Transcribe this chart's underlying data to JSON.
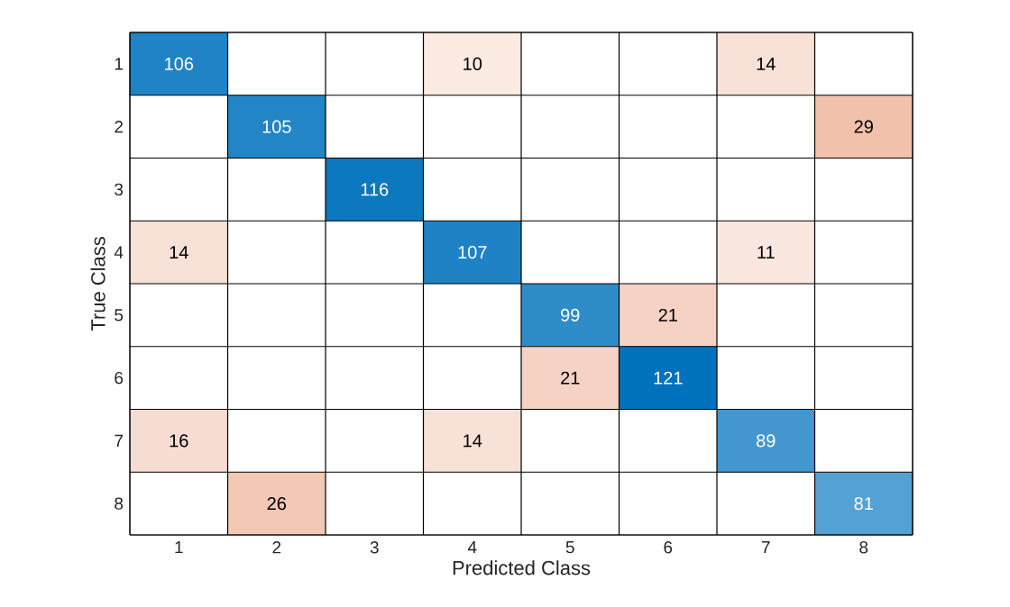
{
  "chart_data": {
    "type": "heatmap",
    "xlabel": "Predicted Class",
    "ylabel": "True Class",
    "categories": [
      "1",
      "2",
      "3",
      "4",
      "5",
      "6",
      "7",
      "8"
    ],
    "y_categories": [
      "1",
      "2",
      "3",
      "4",
      "5",
      "6",
      "7",
      "8"
    ],
    "cells": [
      [
        106,
        null,
        null,
        10,
        null,
        null,
        14,
        null
      ],
      [
        null,
        105,
        null,
        null,
        null,
        null,
        null,
        29
      ],
      [
        null,
        null,
        116,
        null,
        null,
        null,
        null,
        null
      ],
      [
        14,
        null,
        null,
        107,
        null,
        null,
        11,
        null
      ],
      [
        null,
        null,
        null,
        null,
        99,
        21,
        null,
        null
      ],
      [
        null,
        null,
        null,
        null,
        21,
        121,
        null,
        null
      ],
      [
        16,
        null,
        null,
        14,
        null,
        null,
        89,
        null
      ],
      [
        null,
        26,
        null,
        null,
        null,
        null,
        null,
        81
      ]
    ],
    "data_labels": true,
    "grid": true
  }
}
